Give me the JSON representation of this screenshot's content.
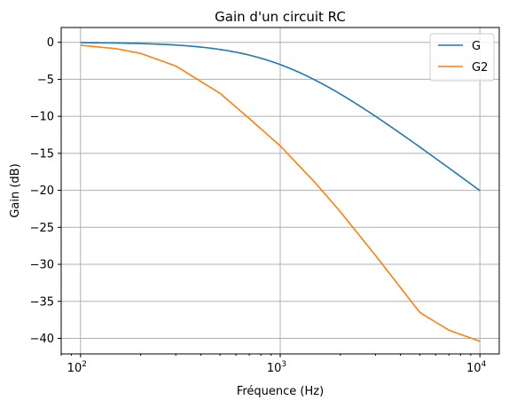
{
  "chart_data": {
    "type": "line",
    "title": "Gain d'un circuit RC",
    "xlabel": "Fréquence (Hz)",
    "ylabel": "Gain (dB)",
    "xscale": "log",
    "xlim": [
      80,
      12500
    ],
    "ylim": [
      -42.1,
      2.0
    ],
    "x_ticks": [
      {
        "value": 100,
        "base": "10",
        "exp": "2"
      },
      {
        "value": 1000,
        "base": "10",
        "exp": "3"
      },
      {
        "value": 10000,
        "base": "10",
        "exp": "4"
      }
    ],
    "y_ticks": [
      0,
      -5,
      -10,
      -15,
      -20,
      -25,
      -30,
      -35,
      -40
    ],
    "y_tick_labels": [
      "0",
      "−5",
      "−10",
      "−15",
      "−20",
      "−25",
      "−30",
      "−35",
      "−40"
    ],
    "grid": true,
    "legend_position": "top-right",
    "series": [
      {
        "name": "G",
        "color": "#1f77b4",
        "cutoff_hz": 1000,
        "order": 1,
        "x": [
          100,
          150,
          200,
          300,
          500,
          700,
          1000,
          1500,
          2000,
          3000,
          5000,
          7000,
          10000
        ],
        "y": [
          -0.04,
          -0.1,
          -0.17,
          -0.37,
          -0.97,
          -1.74,
          -3.01,
          -5.12,
          -6.99,
          -10.0,
          -14.15,
          -16.99,
          -20.0
        ]
      },
      {
        "name": "G2",
        "color": "#ff7f0e",
        "cutoff_hz": 1000,
        "order": 2,
        "x": [
          100,
          150,
          200,
          300,
          500,
          700,
          1000,
          1500,
          2000,
          3000,
          5000,
          7000,
          10000
        ],
        "y": [
          -0.4,
          -0.85,
          -1.5,
          -3.2,
          -6.9,
          -10.3,
          -14.0,
          -19.0,
          -22.9,
          -28.8,
          -36.5,
          -38.9,
          -40.4
        ]
      }
    ]
  }
}
